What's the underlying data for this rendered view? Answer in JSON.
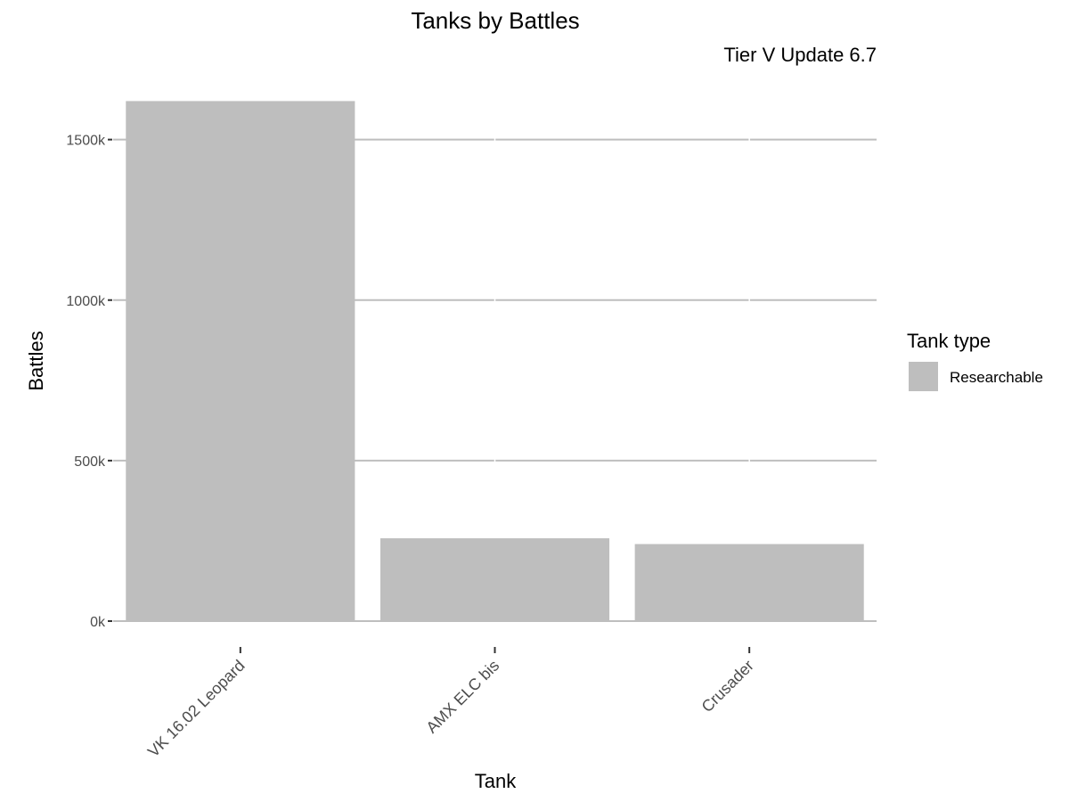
{
  "chart_data": {
    "type": "bar",
    "title": "Tanks by Battles",
    "subtitle": "Tier V Update 6.7",
    "xlabel": "Tank",
    "ylabel": "Battles",
    "categories": [
      "VK 16.02 Leopard",
      "AMX ELC bis",
      "Crusader"
    ],
    "series": [
      {
        "name": "Researchable",
        "values": [
          1620000,
          258000,
          240000
        ]
      }
    ],
    "ylim": [
      0,
      1620000
    ],
    "yticks": [
      0,
      500000,
      1000000,
      1500000
    ],
    "ytick_labels": [
      "0k",
      "500k",
      "1000k",
      "1500k"
    ],
    "grid": true,
    "legend": {
      "title": "Tank type",
      "position": "right"
    },
    "colors": {
      "bar": "#bebebe",
      "grid": "#bebebe",
      "axis": "#bebebe"
    }
  }
}
